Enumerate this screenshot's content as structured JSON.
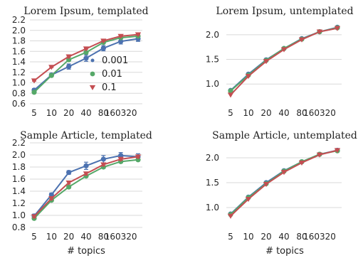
{
  "colors": {
    "grid": "#d9d9d9",
    "s001": "#4c72b0",
    "s01": "#55a868",
    "s1": "#c44e52"
  },
  "chart_data": [
    {
      "type": "line",
      "title": "Lorem Ipsum, templated",
      "xlabel": "",
      "categories": [
        "5",
        "10",
        "20",
        "40",
        "80",
        "160",
        "320"
      ],
      "xtick_labels": [
        "5",
        "10",
        "20",
        "40",
        "80",
        "160320",
        ""
      ],
      "ylim": [
        0.6,
        2.2
      ],
      "yticks": [
        "0.6",
        "0.8",
        "1.0",
        "1.2",
        "1.4",
        "1.6",
        "1.8",
        "2.0",
        "2.2"
      ],
      "legend": "inside-right",
      "grid": "horizontal",
      "series": [
        {
          "name": "0.001",
          "marker": "circle",
          "color": "#4c72b0",
          "values": [
            0.86,
            1.15,
            1.31,
            1.47,
            1.66,
            1.79,
            1.84
          ],
          "errors": [
            0.03,
            0.03,
            0.05,
            0.06,
            0.05,
            0.05,
            0.05
          ]
        },
        {
          "name": "0.01",
          "marker": "circle",
          "color": "#55a868",
          "values": [
            0.82,
            1.14,
            1.44,
            1.58,
            1.77,
            1.86,
            1.89
          ],
          "errors": [
            0.02,
            0.02,
            0.02,
            0.02,
            0.02,
            0.02,
            0.02
          ]
        },
        {
          "name": "0.1",
          "marker": "triangle",
          "color": "#c44e52",
          "values": [
            1.04,
            1.3,
            1.5,
            1.65,
            1.8,
            1.89,
            1.92
          ],
          "errors": [
            0.01,
            0.01,
            0.01,
            0.01,
            0.01,
            0.01,
            0.01
          ]
        }
      ]
    },
    {
      "type": "line",
      "title": "Lorem Ipsum, untemplated",
      "xlabel": "",
      "categories": [
        "5",
        "10",
        "20",
        "40",
        "80",
        "160",
        "320"
      ],
      "xtick_labels": [
        "5",
        "10",
        "20",
        "40",
        "80",
        "160320",
        ""
      ],
      "ylim": [
        0.6,
        2.3
      ],
      "yticks": [
        "1.0",
        "1.5",
        "2.0"
      ],
      "legend": "none",
      "grid": "horizontal",
      "series": [
        {
          "name": "0.001",
          "marker": "circle",
          "color": "#4c72b0",
          "values": [
            0.87,
            1.2,
            1.49,
            1.72,
            1.92,
            2.06,
            2.15
          ],
          "errors": [
            0,
            0,
            0,
            0,
            0,
            0,
            0
          ]
        },
        {
          "name": "0.01",
          "marker": "circle",
          "color": "#55a868",
          "values": [
            0.86,
            1.18,
            1.48,
            1.72,
            1.91,
            2.06,
            2.14
          ],
          "errors": [
            0,
            0,
            0,
            0,
            0,
            0,
            0
          ]
        },
        {
          "name": "0.1",
          "marker": "triangle",
          "color": "#c44e52",
          "values": [
            0.78,
            1.16,
            1.46,
            1.7,
            1.9,
            2.06,
            2.13
          ],
          "errors": [
            0,
            0,
            0,
            0,
            0,
            0,
            0
          ]
        }
      ]
    },
    {
      "type": "line",
      "title": "Sample Article, templated",
      "xlabel": "# topics",
      "categories": [
        "5",
        "10",
        "20",
        "40",
        "80",
        "160",
        "320"
      ],
      "xtick_labels": [
        "5",
        "10",
        "20",
        "40",
        "80",
        "160320",
        ""
      ],
      "ylim": [
        0.8,
        2.2
      ],
      "yticks": [
        "0.8",
        "1.0",
        "1.2",
        "1.4",
        "1.6",
        "1.8",
        "2.0",
        "2.2"
      ],
      "legend": "none",
      "grid": "horizontal",
      "series": [
        {
          "name": "0.001",
          "marker": "circle",
          "color": "#4c72b0",
          "values": [
            0.99,
            1.34,
            1.71,
            1.82,
            1.93,
            1.99,
            1.97
          ],
          "errors": [
            0.03,
            0.03,
            0.03,
            0.06,
            0.06,
            0.05,
            0.05
          ]
        },
        {
          "name": "0.01",
          "marker": "circle",
          "color": "#55a868",
          "values": [
            0.95,
            1.25,
            1.47,
            1.65,
            1.8,
            1.89,
            1.92
          ],
          "errors": [
            0.02,
            0.02,
            0.02,
            0.02,
            0.02,
            0.02,
            0.02
          ]
        },
        {
          "name": "0.1",
          "marker": "triangle",
          "color": "#c44e52",
          "values": [
            0.98,
            1.28,
            1.54,
            1.69,
            1.84,
            1.93,
            1.97
          ],
          "errors": [
            0.02,
            0.02,
            0.02,
            0.02,
            0.02,
            0.02,
            0.02
          ]
        }
      ]
    },
    {
      "type": "line",
      "title": "Sample Article, untemplated",
      "xlabel": "# topics",
      "categories": [
        "5",
        "10",
        "20",
        "40",
        "80",
        "160",
        "320"
      ],
      "xtick_labels": [
        "5",
        "10",
        "20",
        "40",
        "80",
        "160320",
        ""
      ],
      "ylim": [
        0.6,
        2.3
      ],
      "yticks": [
        "1.0",
        "1.5",
        "2.0"
      ],
      "legend": "none",
      "grid": "horizontal",
      "series": [
        {
          "name": "0.001",
          "marker": "circle",
          "color": "#4c72b0",
          "values": [
            0.87,
            1.21,
            1.5,
            1.74,
            1.92,
            2.07,
            2.15
          ],
          "errors": [
            0,
            0,
            0,
            0,
            0,
            0,
            0
          ]
        },
        {
          "name": "0.01",
          "marker": "circle",
          "color": "#55a868",
          "values": [
            0.86,
            1.2,
            1.48,
            1.73,
            1.92,
            2.07,
            2.14
          ],
          "errors": [
            0,
            0,
            0,
            0,
            0,
            0,
            0
          ]
        },
        {
          "name": "0.1",
          "marker": "triangle",
          "color": "#c44e52",
          "values": [
            0.83,
            1.17,
            1.47,
            1.71,
            1.9,
            2.06,
            2.15
          ],
          "errors": [
            0,
            0,
            0,
            0,
            0,
            0,
            0
          ]
        }
      ]
    }
  ]
}
